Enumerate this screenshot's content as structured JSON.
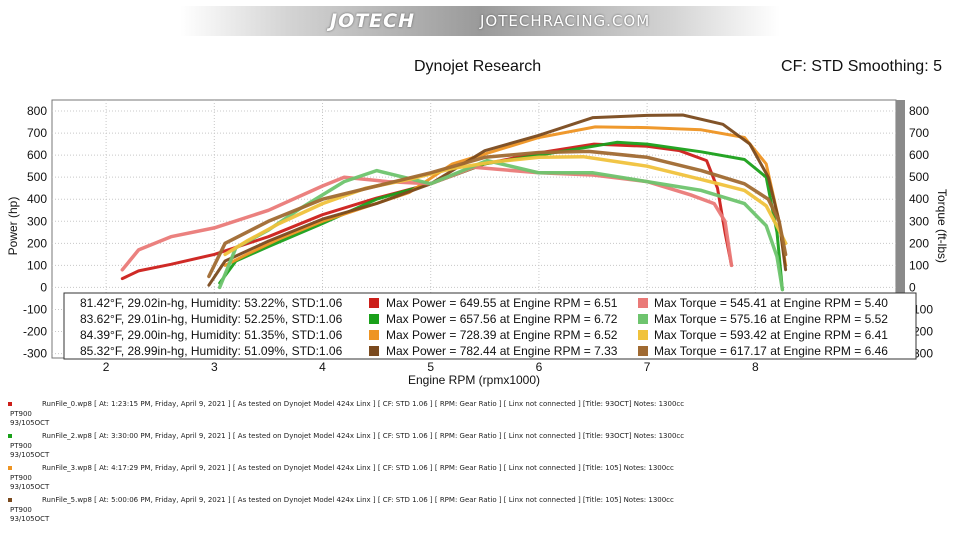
{
  "banner": {
    "logo": "JOTECH",
    "site": "JOTECHRACING.COM"
  },
  "header": {
    "title": "Dynojet Research",
    "cf": "CF: STD Smoothing: 5"
  },
  "chart_data": {
    "type": "line",
    "xlabel": "Engine RPM (rpmx1000)",
    "ylabel_left": "Power (hp)",
    "ylabel_right": "Torque (ft-lbs)",
    "xlim": [
      1.5,
      9.3
    ],
    "ylim": [
      -320,
      850
    ],
    "x_ticks": [
      2,
      3,
      4,
      5,
      6,
      7,
      8
    ],
    "y_ticks_left": [
      800,
      700,
      600,
      500,
      400,
      300,
      200,
      100,
      0,
      -100,
      -200,
      -300
    ],
    "y_ticks_right": [
      800,
      700,
      600,
      500,
      400,
      300,
      200,
      100,
      0,
      -100,
      -200,
      -300
    ],
    "grid": true,
    "legend_position": "bottom-center",
    "conditions": [
      "81.42°F, 29.02in-hg, Humidity: 53.22%, STD:1.06",
      "83.62°F, 29.01in-hg, Humidity: 52.25%, STD:1.06",
      "84.39°F, 29.00in-hg, Humidity: 51.35%, STD:1.06",
      "85.32°F, 28.99in-hg, Humidity: 51.09%, STD:1.06"
    ],
    "power_legend": [
      "Max Power = 649.55 at Engine RPM = 6.51",
      "Max Power = 657.56 at Engine RPM = 6.72",
      "Max Power = 728.39 at Engine RPM = 6.52",
      "Max Power = 782.44 at Engine RPM = 7.33"
    ],
    "torque_legend": [
      "Max Torque = 545.41 at Engine RPM = 5.40",
      "Max Torque = 575.16 at Engine RPM = 5.52",
      "Max Torque = 593.42 at Engine RPM = 6.41",
      "Max Torque = 617.17 at Engine RPM = 6.46"
    ],
    "series": [
      {
        "kind": "power",
        "run": 0,
        "color": "#cc1f1a",
        "x": [
          2.15,
          2.3,
          2.6,
          3.0,
          3.5,
          4.0,
          4.5,
          5.0,
          5.5,
          6.0,
          6.51,
          7.0,
          7.3,
          7.55,
          7.65,
          7.72,
          7.78
        ],
        "y": [
          40,
          75,
          105,
          150,
          230,
          330,
          405,
          470,
          560,
          610,
          650,
          640,
          620,
          575,
          450,
          250,
          100
        ]
      },
      {
        "kind": "power",
        "run": 2,
        "color": "#1aa01a",
        "x": [
          3.05,
          3.2,
          3.5,
          4.0,
          4.5,
          5.0,
          5.5,
          6.0,
          6.5,
          6.72,
          7.0,
          7.5,
          7.9,
          8.1,
          8.2,
          8.25
        ],
        "y": [
          20,
          120,
          185,
          290,
          400,
          470,
          560,
          600,
          640,
          658,
          650,
          615,
          580,
          500,
          250,
          -10
        ]
      },
      {
        "kind": "power",
        "run": 3,
        "color": "#ee9422",
        "x": [
          3.1,
          3.3,
          3.6,
          4.0,
          4.4,
          4.8,
          5.2,
          5.6,
          6.0,
          6.52,
          7.0,
          7.5,
          7.9,
          8.1,
          8.22,
          8.28
        ],
        "y": [
          100,
          150,
          220,
          300,
          365,
          430,
          560,
          620,
          680,
          728,
          725,
          715,
          680,
          560,
          300,
          100
        ]
      },
      {
        "kind": "power",
        "run": 5,
        "color": "#7a4a1e",
        "x": [
          2.95,
          3.1,
          3.5,
          4.0,
          4.5,
          5.0,
          5.5,
          6.0,
          6.5,
          7.0,
          7.33,
          7.7,
          7.95,
          8.12,
          8.22,
          8.28
        ],
        "y": [
          10,
          120,
          210,
          310,
          380,
          470,
          620,
          690,
          770,
          780,
          782,
          740,
          650,
          500,
          300,
          80
        ]
      },
      {
        "kind": "torque",
        "run": 0,
        "color": "#ea7a78",
        "x": [
          2.15,
          2.3,
          2.6,
          3.0,
          3.5,
          4.0,
          4.2,
          4.6,
          5.0,
          5.4,
          6.0,
          6.5,
          7.0,
          7.4,
          7.62,
          7.72,
          7.78
        ],
        "y": [
          80,
          170,
          230,
          270,
          350,
          460,
          500,
          480,
          470,
          545,
          520,
          510,
          480,
          420,
          380,
          300,
          100
        ]
      },
      {
        "kind": "torque",
        "run": 2,
        "color": "#6ec46e",
        "x": [
          3.05,
          3.2,
          3.5,
          3.8,
          4.2,
          4.5,
          5.0,
          5.52,
          6.0,
          6.5,
          7.0,
          7.5,
          7.9,
          8.1,
          8.2,
          8.25
        ],
        "y": [
          0,
          180,
          260,
          360,
          480,
          530,
          470,
          575,
          520,
          520,
          480,
          440,
          380,
          280,
          140,
          -10
        ]
      },
      {
        "kind": "torque",
        "run": 3,
        "color": "#f0c23c",
        "x": [
          3.1,
          3.3,
          3.6,
          4.0,
          4.4,
          4.8,
          5.2,
          5.6,
          6.0,
          6.41,
          7.0,
          7.5,
          7.9,
          8.1,
          8.22,
          8.28
        ],
        "y": [
          150,
          210,
          290,
          380,
          450,
          490,
          540,
          570,
          590,
          593,
          550,
          490,
          440,
          370,
          260,
          200
        ]
      },
      {
        "kind": "torque",
        "run": 5,
        "color": "#a06a32",
        "x": [
          2.95,
          3.1,
          3.5,
          4.0,
          4.5,
          5.0,
          5.5,
          6.0,
          6.46,
          7.0,
          7.5,
          7.9,
          8.12,
          8.22,
          8.28
        ],
        "y": [
          50,
          200,
          300,
          400,
          460,
          520,
          590,
          612,
          617,
          590,
          530,
          470,
          400,
          300,
          150
        ]
      }
    ]
  },
  "runs": [
    {
      "line1": "RunFile_0.wp8 [ At: 1:23:15 PM, Friday, April 9, 2021 ] [ As tested on Dynojet Model 424x Linx ] [ CF: STD 1.06 ] [ RPM: Gear Ratio ] [ Linx not connected ] [Title: 93OCT]   Notes: 1300cc",
      "line2": "PT900",
      "line3": "93/105OCT",
      "color": "#cc1f1a"
    },
    {
      "line1": "RunFile_2.wp8 [ At: 3:30:00 PM, Friday, April 9, 2021 ] [ As tested on Dynojet Model 424x Linx ] [ CF: STD 1.06 ] [ RPM: Gear Ratio ] [ Linx not connected ] [Title: 93OCT]   Notes: 1300cc",
      "line2": "PT900",
      "line3": "93/105OCT",
      "color": "#1aa01a"
    },
    {
      "line1": "RunFile_3.wp8 [ At: 4:17:29 PM, Friday, April 9, 2021 ] [ As tested on Dynojet Model 424x Linx ] [ CF: STD 1.06 ] [ RPM: Gear Ratio ] [ Linx not connected ] [Title: 105]   Notes: 1300cc",
      "line2": "PT900",
      "line3": "93/105OCT",
      "color": "#ee9422"
    },
    {
      "line1": "RunFile_5.wp8 [ At: 5:00:06 PM, Friday, April 9, 2021 ] [ As tested on Dynojet Model 424x Linx ] [ CF: STD 1.06 ] [ RPM: Gear Ratio ] [ Linx not connected ] [Title: 105]   Notes: 1300cc",
      "line2": "PT900",
      "line3": "93/105OCT",
      "color": "#7a4a1e"
    }
  ]
}
